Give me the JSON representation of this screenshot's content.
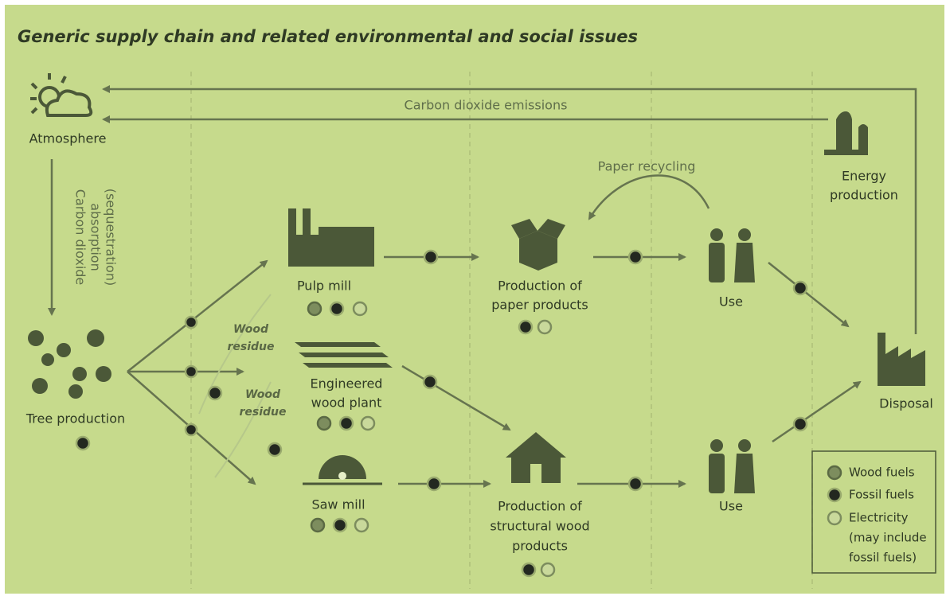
{
  "title": "Generic supply chain and related environmental and social issues",
  "nodes": [
    {
      "label": [
        "Atmosphere"
      ]
    },
    {
      "label": [
        "Energy",
        "production"
      ]
    },
    {
      "label": [
        "Tree production"
      ]
    },
    {
      "label": [
        "Pulp mill"
      ]
    },
    {
      "label": [
        "Engineered",
        "wood plant"
      ]
    },
    {
      "label": [
        "Saw mill"
      ]
    },
    {
      "label": [
        "Production of",
        "paper products"
      ]
    },
    {
      "label": [
        "Production of",
        "structural wood",
        "products"
      ]
    },
    {
      "label": [
        "Use"
      ]
    },
    {
      "label": [
        "Use"
      ]
    },
    {
      "label": [
        "Disposal"
      ]
    }
  ],
  "flows": [
    {
      "label": [
        "Carbon dioxide emissions"
      ]
    },
    {
      "label": [
        "Carbon dioxide",
        "absorption",
        "(sequestration)"
      ]
    },
    {
      "label": [
        "Paper recycling"
      ]
    },
    {
      "label": [
        "Wood",
        "residue"
      ]
    },
    {
      "label": [
        "Wood",
        "residue"
      ]
    }
  ],
  "legend": [
    {
      "label": [
        "Wood fuels"
      ]
    },
    {
      "label": [
        "Fossil fuels"
      ]
    },
    {
      "label": [
        "Electricity",
        "(may include",
        "fossil fuels)"
      ]
    }
  ]
}
